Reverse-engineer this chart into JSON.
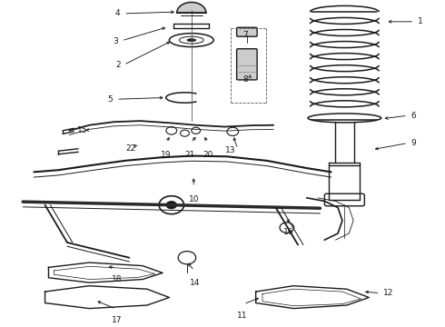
{
  "bg_color": "#ffffff",
  "line_color": "#1a1a1a",
  "fig_width": 4.9,
  "fig_height": 3.6,
  "dpi": 100,
  "label_fontsize": 6.5,
  "label_positions": {
    "1": [
      0.935,
      0.935,
      0.87,
      0.935,
      "right"
    ],
    "2": [
      0.275,
      0.8,
      0.385,
      0.875,
      "left"
    ],
    "3": [
      0.27,
      0.875,
      0.375,
      0.918,
      "left"
    ],
    "4": [
      0.275,
      0.96,
      0.395,
      0.965,
      "left"
    ],
    "5": [
      0.258,
      0.695,
      0.37,
      0.7,
      "left"
    ],
    "6": [
      0.92,
      0.645,
      0.862,
      0.635,
      "right"
    ],
    "7": [
      0.562,
      0.895,
      0.562,
      0.895,
      "left"
    ],
    "8": [
      0.562,
      0.755,
      0.562,
      0.775,
      "left"
    ],
    "9": [
      0.92,
      0.56,
      0.84,
      0.54,
      "right"
    ],
    "10": [
      0.435,
      0.42,
      0.435,
      0.455,
      "center"
    ],
    "11": [
      0.545,
      0.06,
      0.585,
      0.082,
      "center"
    ],
    "12": [
      0.858,
      0.095,
      0.818,
      0.1,
      "right"
    ],
    "13": [
      0.535,
      0.538,
      0.524,
      0.582,
      "left"
    ],
    "14": [
      0.438,
      0.162,
      0.42,
      0.192,
      "center"
    ],
    "15": [
      0.2,
      0.6,
      0.188,
      0.6,
      "left"
    ],
    "16": [
      0.648,
      0.318,
      0.648,
      0.308,
      "center"
    ],
    "17": [
      0.263,
      0.045,
      0.215,
      0.072,
      "center"
    ],
    "18": [
      0.263,
      0.173,
      0.24,
      0.178,
      "center"
    ],
    "19": [
      0.372,
      0.558,
      0.382,
      0.582,
      "center"
    ],
    "20": [
      0.468,
      0.558,
      0.458,
      0.582,
      "center"
    ],
    "21": [
      0.427,
      0.558,
      0.442,
      0.582,
      "center"
    ],
    "22": [
      0.31,
      0.543,
      0.298,
      0.558,
      "left"
    ]
  }
}
